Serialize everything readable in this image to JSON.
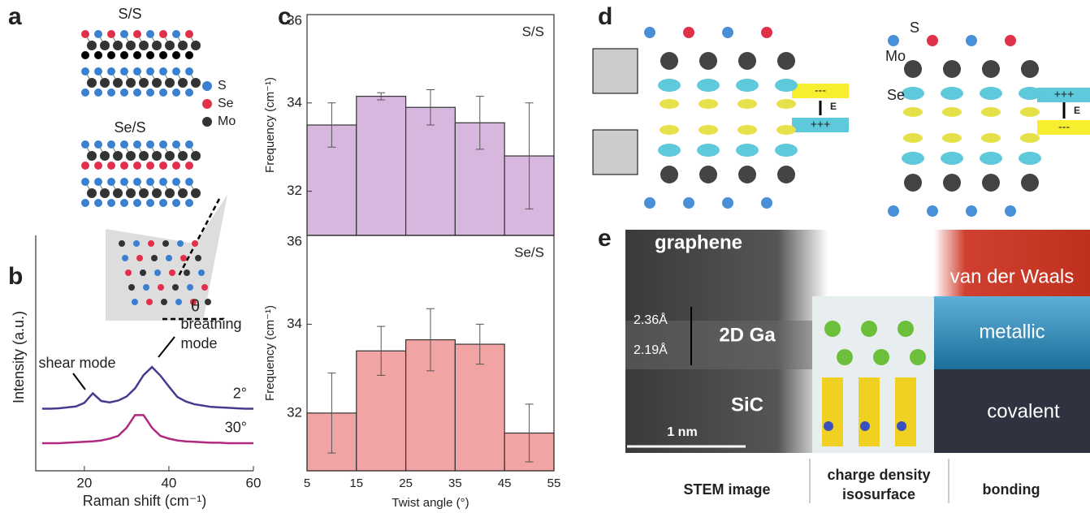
{
  "panel_labels": [
    "a",
    "b",
    "c",
    "d",
    "e"
  ],
  "panel_a": {
    "top_label": "S/S",
    "bottom_label": "Se/S",
    "legend": [
      "S",
      "Se",
      "Mo"
    ]
  },
  "panel_b_inset": {
    "angle": "θ"
  },
  "panel_d": {
    "atoms": [
      "S",
      "Mo",
      "Se"
    ],
    "left_field": {
      "top": "---",
      "arrow": "E",
      "bottom": "+++"
    },
    "right_field": {
      "top": "+++",
      "arrow": "E",
      "bottom": "---"
    }
  },
  "panel_e": {
    "graphene": "graphene",
    "vdw": "van der Waals",
    "d1": "2.36Å",
    "d2": "2.19Å",
    "ga": "2D Ga",
    "metallic": "metallic",
    "sic": "SiC",
    "covalent": "covalent",
    "scale": "1 nm",
    "captions": {
      "left": "STEM image",
      "middle": [
        "charge density",
        "isosurface"
      ],
      "right": "bonding"
    }
  },
  "chart_data": [
    {
      "type": "line",
      "xlabel": "Raman shift (cm⁻¹)",
      "ylabel": "Intensity (a.u.)",
      "x": [
        10,
        12,
        14,
        16,
        18,
        20,
        22,
        24,
        26,
        28,
        30,
        32,
        34,
        36,
        38,
        40,
        42,
        44,
        46,
        48,
        50,
        52,
        54,
        56,
        58,
        60
      ],
      "series": [
        {
          "name": "2°",
          "color": "#4a3a8f",
          "values": [
            1.07,
            1.07,
            1.08,
            1.1,
            1.12,
            1.2,
            1.41,
            1.24,
            1.21,
            1.25,
            1.34,
            1.52,
            1.81,
            1.99,
            1.8,
            1.56,
            1.33,
            1.23,
            1.17,
            1.14,
            1.11,
            1.1,
            1.09,
            1.08,
            1.07,
            1.07
          ]
        },
        {
          "name": "30°",
          "color": "#b0287f",
          "values": [
            0.31,
            0.31,
            0.31,
            0.32,
            0.33,
            0.34,
            0.35,
            0.37,
            0.41,
            0.47,
            0.65,
            0.93,
            0.93,
            0.65,
            0.47,
            0.41,
            0.37,
            0.35,
            0.34,
            0.33,
            0.32,
            0.32,
            0.31,
            0.31,
            0.31,
            0.31
          ]
        }
      ],
      "annotations": {
        "shear": "shear mode",
        "breathing": [
          "breathing",
          "mode"
        ]
      },
      "xlim": [
        8.5,
        60
      ],
      "xticks": [
        20,
        40,
        60
      ],
      "ylim": [
        -0.3,
        4
      ]
    },
    {
      "type": "histogram",
      "title": "S/S",
      "ylabel": "Frequency (cm⁻¹)",
      "bins": [
        5,
        15,
        25,
        35,
        45,
        55
      ],
      "values": [
        33.5,
        34.15,
        33.9,
        33.55,
        32.8
      ],
      "errors": [
        0.5,
        0.08,
        0.4,
        0.6,
        1.2
      ],
      "color": "#d7b7dd",
      "ylim": [
        31,
        36
      ],
      "yticks": [
        32,
        34,
        36
      ]
    },
    {
      "type": "histogram",
      "title": "Se/S",
      "ylabel": "Frequency (cm⁻¹)",
      "xlabel": "Twist angle (°)",
      "bins": [
        5,
        15,
        25,
        35,
        45,
        55
      ],
      "values": [
        32.0,
        33.4,
        33.65,
        33.55,
        31.55
      ],
      "errors": [
        0.9,
        0.55,
        0.7,
        0.45,
        0.65
      ],
      "color": "#f2a3a3",
      "ylim": [
        30.7,
        36
      ],
      "yticks": [
        32,
        34,
        36
      ],
      "xticks": [
        5,
        15,
        25,
        35,
        45,
        55
      ]
    }
  ]
}
